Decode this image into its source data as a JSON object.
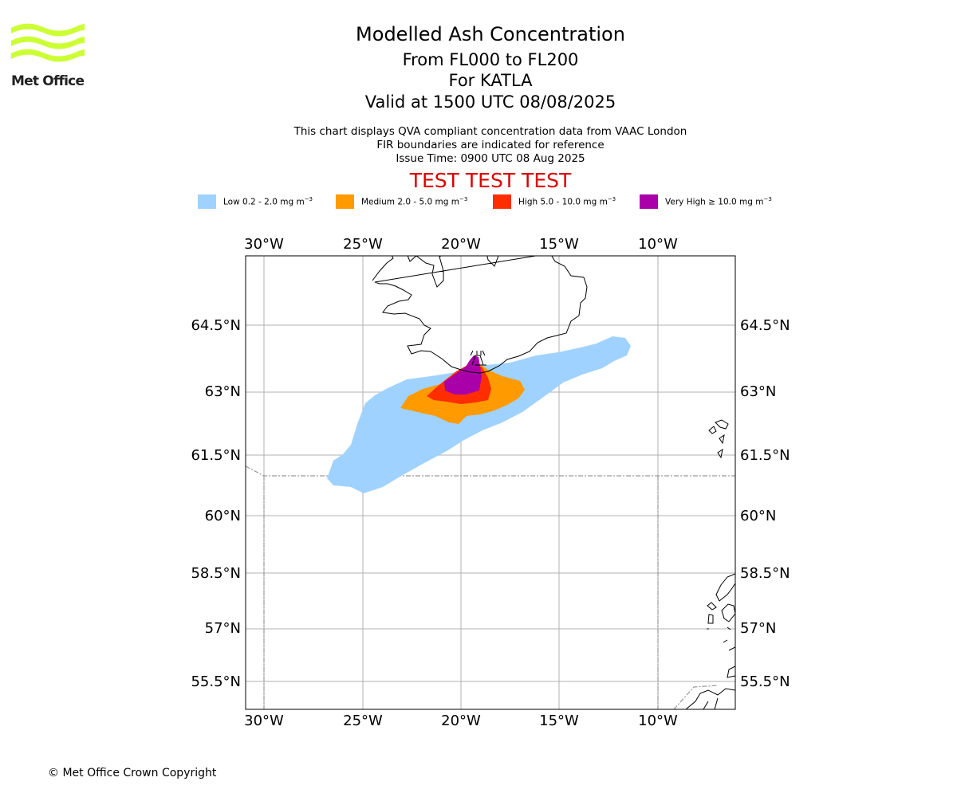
{
  "logo": {
    "text": "Met Office",
    "color": "#ccff33"
  },
  "header": {
    "title": "Modelled Ash Concentration",
    "subtitle_line1": "From FL000 to FL200",
    "subtitle_line2": "For KATLA",
    "subtitle_line3": "Valid at 1500 UTC 08/08/2025",
    "info_line1": "This chart displays QVA compliant concentration data from VAAC London",
    "info_line2": "FIR boundaries are indicated for reference",
    "info_line3": "Issue Time: 0900 UTC 08 Aug 2025",
    "banner": "TEST TEST TEST",
    "banner_color": "#dd0000"
  },
  "legend": [
    {
      "label": "Low 0.2 - 2.0 mg m",
      "color": "#a0d2ff"
    },
    {
      "label": "Medium 2.0 - 5.0 mg m",
      "color": "#ff9a00"
    },
    {
      "label": "High 5.0 - 10.0 mg m",
      "color": "#ff2e00"
    },
    {
      "label": "Very High ≥ 10.0 mg m",
      "color": "#aa00aa"
    }
  ],
  "legend_unit_exponent": "−3",
  "map": {
    "lon_labels": [
      "30°W",
      "25°W",
      "20°W",
      "15°W",
      "10°W"
    ],
    "lat_labels": [
      "64.5°N",
      "63°N",
      "61.5°N",
      "60°N",
      "58.5°N",
      "57°N",
      "55.5°N"
    ],
    "volcano": "KATLA",
    "grid": true,
    "fir_boundaries": true
  },
  "footer": {
    "copyright": "© Met Office Crown Copyright"
  }
}
